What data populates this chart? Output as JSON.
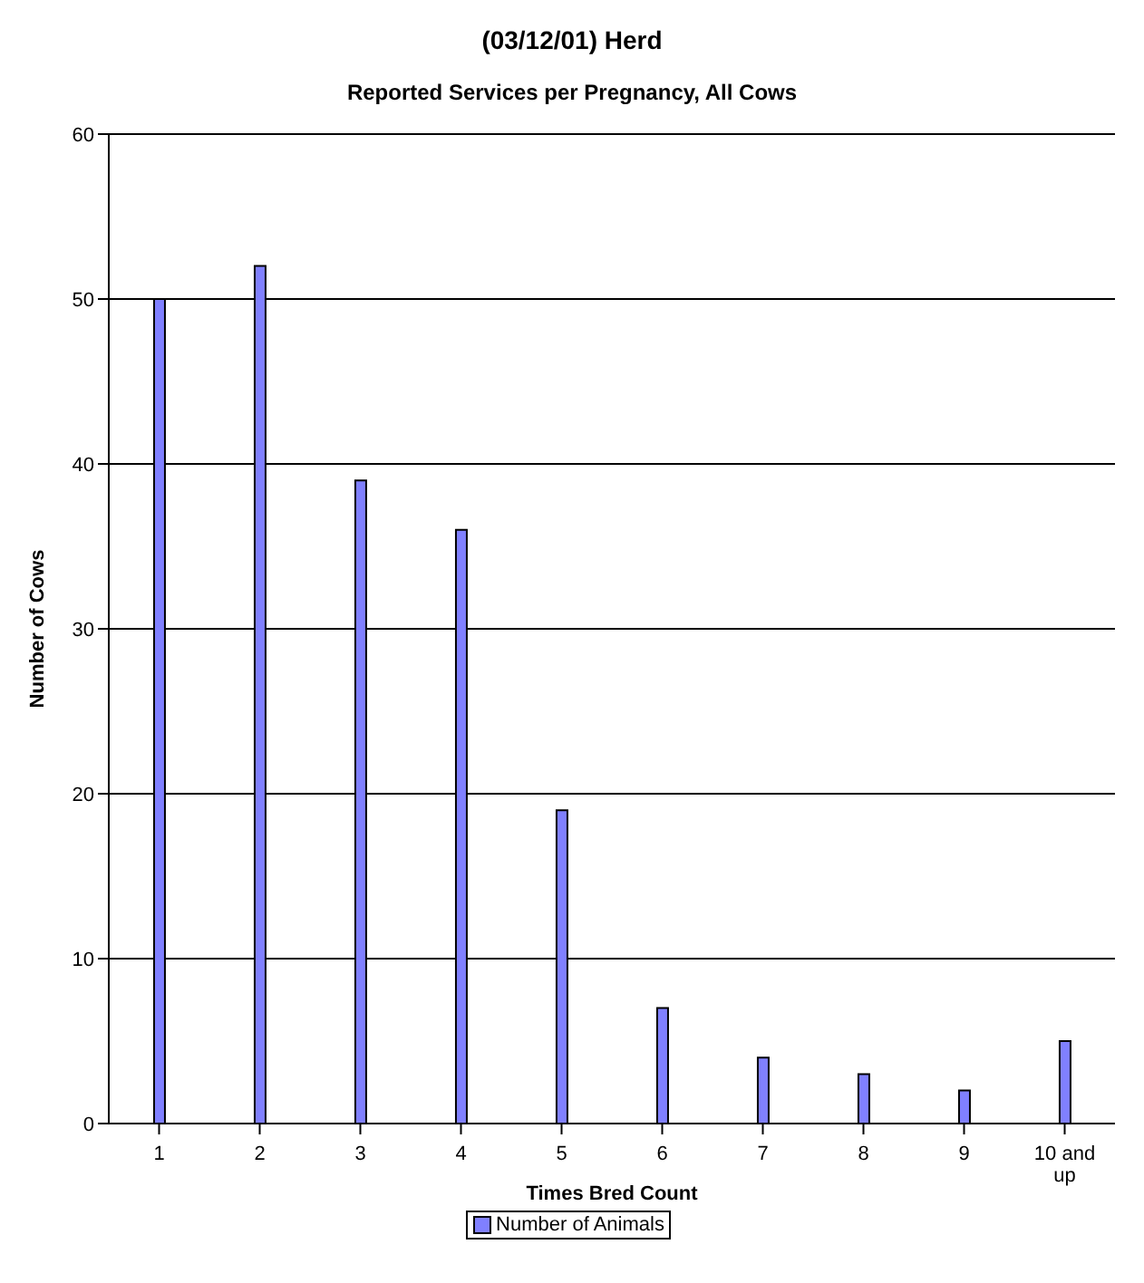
{
  "chart_data": {
    "type": "bar",
    "title": "(03/12/01) Herd",
    "subtitle": "Reported Services per Pregnancy, All Cows",
    "xlabel": "Times Bred Count",
    "ylabel": "Number of Cows",
    "categories": [
      "1",
      "2",
      "3",
      "4",
      "5",
      "6",
      "7",
      "8",
      "9",
      "10 and up"
    ],
    "series": [
      {
        "name": "Number of Animals",
        "color": "#8080ff",
        "values": [
          50,
          52,
          39,
          36,
          19,
          7,
          4,
          3,
          2,
          5
        ]
      }
    ],
    "ylim": [
      0,
      60
    ],
    "yticks": [
      0,
      10,
      20,
      30,
      40,
      50,
      60
    ],
    "grid": "y",
    "legend": "bottom"
  }
}
